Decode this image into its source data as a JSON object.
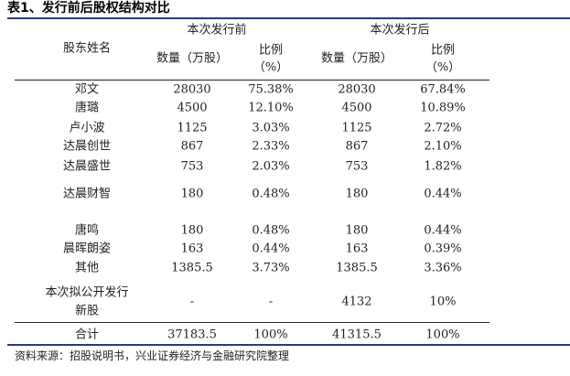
{
  "title": "表1、发行前后股权结构对比",
  "header": {
    "name": "股东姓名",
    "before": "本次发行前",
    "after": "本次发行后",
    "qty": "数量（万股）",
    "pct_line1": "比例",
    "pct_line2": "（%）"
  },
  "rows": [
    {
      "name": "邓文",
      "q1": "28030",
      "p1": "75.38%",
      "q2": "28030",
      "p2": "67.84%"
    },
    {
      "name": "唐璐",
      "q1": "4500",
      "p1": "12.10%",
      "q2": "4500",
      "p2": "10.89%"
    },
    {
      "name": "卢小波",
      "q1": "1125",
      "p1": "3.03%",
      "q2": "1125",
      "p2": "2.72%"
    },
    {
      "name": "达晨创世",
      "q1": "867",
      "p1": "2.33%",
      "q2": "867",
      "p2": "2.10%"
    },
    {
      "name": "达晨盛世",
      "q1": "753",
      "p1": "2.03%",
      "q2": "753",
      "p2": "1.82%"
    },
    {
      "name": "达晨财智",
      "q1": "180",
      "p1": "0.48%",
      "q2": "180",
      "p2": "0.44%"
    },
    {
      "name": "唐鸣",
      "q1": "180",
      "p1": "0.48%",
      "q2": "180",
      "p2": "0.44%"
    },
    {
      "name": "晨晖朗姿",
      "q1": "163",
      "p1": "0.44%",
      "q2": "163",
      "p2": "0.39%"
    },
    {
      "name": "其他",
      "q1": "1385.5",
      "p1": "3.73%",
      "q2": "1385.5",
      "p2": "3.36%"
    },
    {
      "name": "本次拟公开发行新股",
      "q1": "-",
      "p1": "-",
      "q2": "4132",
      "p2": "10%"
    }
  ],
  "new_shares_name": {
    "line1": "本次拟公开发行",
    "line2": "新股"
  },
  "total": {
    "name": "合计",
    "q1": "37183.5",
    "p1": "100%",
    "q2": "41315.5",
    "p2": "100%"
  },
  "source": "资料来源：招股说明书，兴业证券经济与金融研究院整理"
}
